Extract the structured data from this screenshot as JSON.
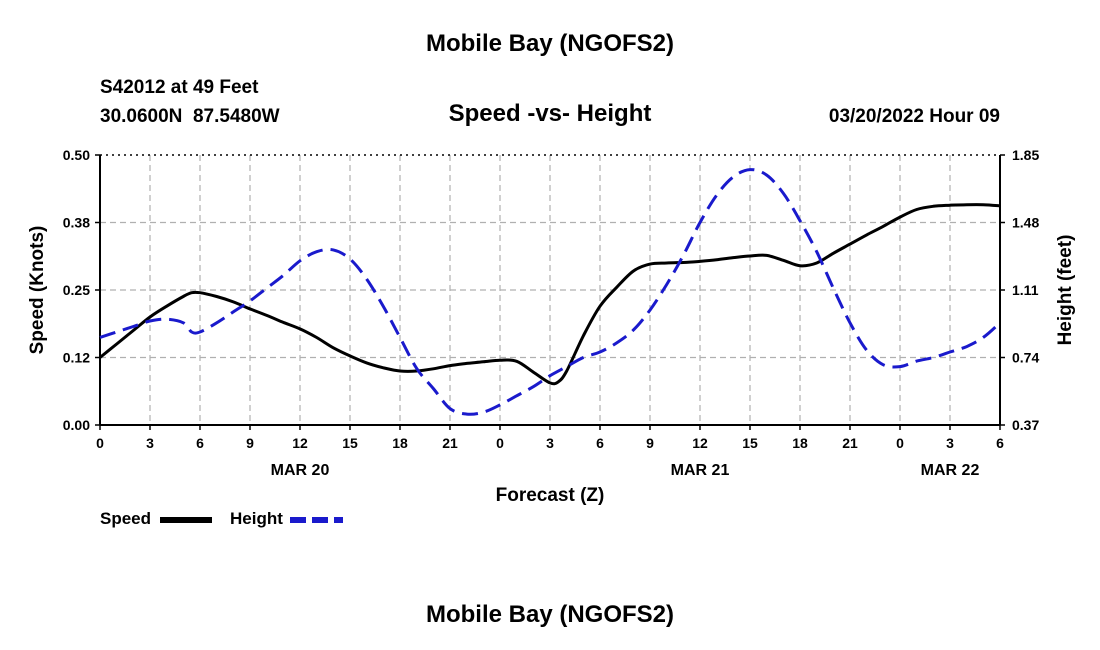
{
  "header": {
    "title": "Mobile Bay (NGOFS2)",
    "station_line": "S42012 at 49 Feet",
    "coords_line": "30.0600N  87.5480W",
    "subtitle": "Speed -vs- Height",
    "datetime_line": "03/20/2022 Hour 09",
    "repeat_title": "Mobile Bay (NGOFS2)"
  },
  "legend": {
    "speed_label": "Speed",
    "height_label": "Height"
  },
  "chart_data": {
    "type": "line",
    "title": "Speed -vs- Height",
    "xlabel": "Forecast (Z)",
    "ylabel": "Speed (Knots)",
    "y2label": "Height (feet)",
    "grid": true,
    "legend_placement": "bottom-left",
    "xlim": [
      0,
      54
    ],
    "ylim": [
      0.0,
      0.5
    ],
    "y2lim": [
      0.37,
      1.85
    ],
    "x_ticks": [
      0,
      3,
      6,
      9,
      12,
      15,
      18,
      21,
      24,
      27,
      30,
      33,
      36,
      39,
      42,
      45,
      48,
      51,
      54
    ],
    "x_tick_labels": [
      "0",
      "3",
      "6",
      "9",
      "12",
      "15",
      "18",
      "21",
      "0",
      "3",
      "6",
      "9",
      "12",
      "15",
      "18",
      "21",
      "0",
      "3",
      "6"
    ],
    "y_ticks": [
      0.0,
      0.125,
      0.25,
      0.375,
      0.5
    ],
    "y_tick_labels": [
      "0.00",
      "0.12",
      "0.25",
      "0.38",
      "0.50"
    ],
    "y2_ticks": [
      0.37,
      0.74,
      1.11,
      1.48,
      1.85
    ],
    "y2_tick_labels": [
      "0.37",
      "0.74",
      "1.11",
      "1.48",
      "1.85"
    ],
    "date_labels": [
      {
        "x": 12,
        "label": "MAR 20"
      },
      {
        "x": 36,
        "label": "MAR 21"
      },
      {
        "x": 51,
        "label": "MAR 22"
      }
    ],
    "series": [
      {
        "name": "Speed",
        "axis": "left",
        "color": "#000000",
        "dash": "solid",
        "x": [
          0,
          1,
          2,
          3,
          4,
          5,
          5.5,
          6,
          7,
          8,
          9,
          10,
          11,
          12,
          13,
          14,
          15,
          16,
          17,
          18,
          19,
          20,
          21,
          22,
          23,
          24,
          25,
          26,
          27,
          27.5,
          28,
          29,
          30,
          31,
          32,
          33,
          34,
          35,
          36,
          37,
          38,
          39,
          40,
          41,
          42,
          43,
          44,
          45,
          46,
          47,
          48,
          49,
          50,
          51,
          52,
          53,
          54
        ],
        "y": [
          0.125,
          0.15,
          0.175,
          0.2,
          0.22,
          0.238,
          0.245,
          0.245,
          0.238,
          0.228,
          0.215,
          0.203,
          0.19,
          0.178,
          0.162,
          0.143,
          0.128,
          0.115,
          0.106,
          0.1,
          0.1,
          0.104,
          0.11,
          0.114,
          0.117,
          0.12,
          0.118,
          0.098,
          0.078,
          0.08,
          0.1,
          0.165,
          0.22,
          0.255,
          0.285,
          0.298,
          0.3,
          0.301,
          0.303,
          0.306,
          0.31,
          0.313,
          0.314,
          0.305,
          0.295,
          0.3,
          0.318,
          0.335,
          0.352,
          0.368,
          0.385,
          0.399,
          0.405,
          0.407,
          0.408,
          0.408,
          0.406
        ]
      },
      {
        "name": "Height",
        "axis": "right",
        "color": "#1a1acc",
        "dash": "dashed",
        "x": [
          0,
          1,
          2,
          3,
          4,
          5,
          5.5,
          6,
          7,
          8,
          9,
          10,
          11,
          12,
          13,
          14,
          15,
          16,
          17,
          18,
          19,
          20,
          21,
          22,
          23,
          24,
          25,
          26,
          27,
          28,
          29,
          30,
          31,
          32,
          33,
          34,
          35,
          36,
          37,
          38,
          39,
          40,
          41,
          42,
          43,
          44,
          45,
          46,
          47,
          48,
          49,
          50,
          51,
          52,
          53,
          54
        ],
        "y": [
          0.85,
          0.88,
          0.91,
          0.94,
          0.95,
          0.93,
          0.88,
          0.88,
          0.93,
          0.99,
          1.05,
          1.12,
          1.19,
          1.27,
          1.32,
          1.33,
          1.28,
          1.17,
          1.02,
          0.85,
          0.68,
          0.57,
          0.46,
          0.43,
          0.44,
          0.48,
          0.53,
          0.58,
          0.64,
          0.69,
          0.74,
          0.77,
          0.82,
          0.89,
          1.0,
          1.14,
          1.3,
          1.48,
          1.63,
          1.73,
          1.77,
          1.74,
          1.64,
          1.49,
          1.32,
          1.12,
          0.93,
          0.78,
          0.7,
          0.69,
          0.72,
          0.74,
          0.77,
          0.8,
          0.85,
          0.93
        ]
      }
    ]
  }
}
